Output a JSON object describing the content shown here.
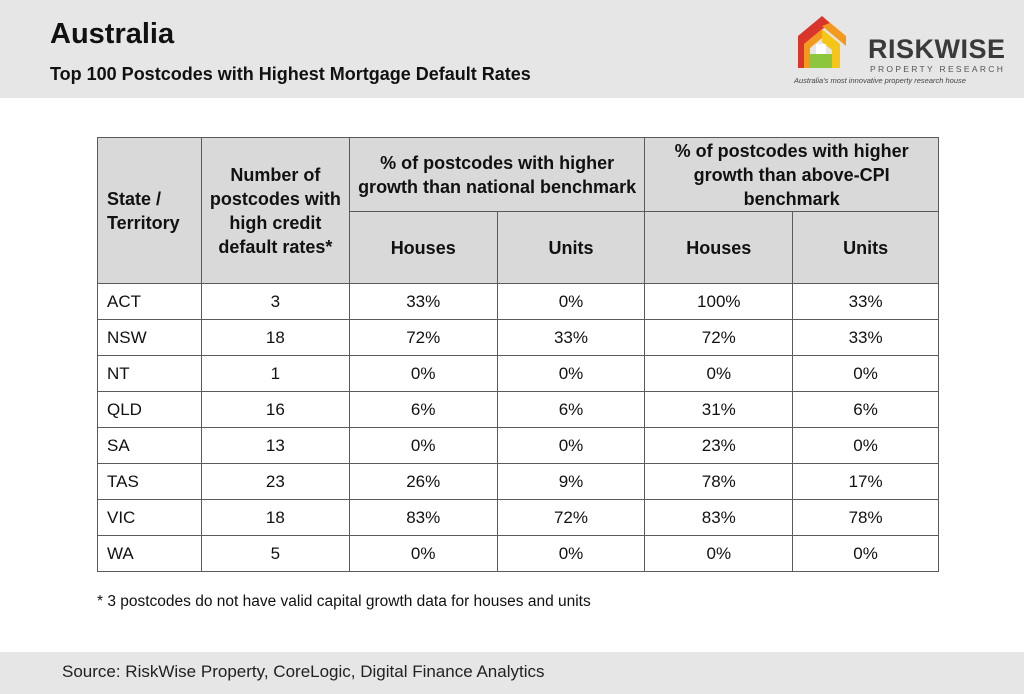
{
  "header": {
    "title": "Australia",
    "subtitle": "Top 100 Postcodes with Highest Mortgage Default Rates"
  },
  "logo": {
    "name": "RISKWISE",
    "sub": "PROPERTY RESEARCH",
    "tagline": "Australia's most innovative property research house",
    "colors": {
      "red": "#d9352a",
      "orange": "#f39a1e",
      "yellow": "#f5c518",
      "green": "#8cc63f"
    }
  },
  "table": {
    "headers": {
      "state": "State / Territory",
      "count": "Number of postcodes with high credit default rates*",
      "national": "% of postcodes with higher growth than national benchmark",
      "cpi": "% of postcodes with higher growth than above-CPI benchmark",
      "houses": "Houses",
      "units": "Units"
    },
    "rows": [
      {
        "state": "ACT",
        "count": "3",
        "nat_houses": "33%",
        "nat_units": "0%",
        "cpi_houses": "100%",
        "cpi_units": "33%"
      },
      {
        "state": "NSW",
        "count": "18",
        "nat_houses": "72%",
        "nat_units": "33%",
        "cpi_houses": "72%",
        "cpi_units": "33%"
      },
      {
        "state": "NT",
        "count": "1",
        "nat_houses": "0%",
        "nat_units": "0%",
        "cpi_houses": "0%",
        "cpi_units": "0%"
      },
      {
        "state": "QLD",
        "count": "16",
        "nat_houses": "6%",
        "nat_units": "6%",
        "cpi_houses": "31%",
        "cpi_units": "6%"
      },
      {
        "state": "SA",
        "count": "13",
        "nat_houses": "0%",
        "nat_units": "0%",
        "cpi_houses": "23%",
        "cpi_units": "0%"
      },
      {
        "state": "TAS",
        "count": "23",
        "nat_houses": "26%",
        "nat_units": "9%",
        "cpi_houses": "78%",
        "cpi_units": "17%"
      },
      {
        "state": "VIC",
        "count": "18",
        "nat_houses": "83%",
        "nat_units": "72%",
        "cpi_houses": "83%",
        "cpi_units": "78%"
      },
      {
        "state": "WA",
        "count": "5",
        "nat_houses": "0%",
        "nat_units": "0%",
        "cpi_houses": "0%",
        "cpi_units": "0%"
      }
    ]
  },
  "footnote": "* 3 postcodes do not have valid capital growth data for houses and units",
  "source": "Source: RiskWise Property, CoreLogic, Digital Finance Analytics"
}
